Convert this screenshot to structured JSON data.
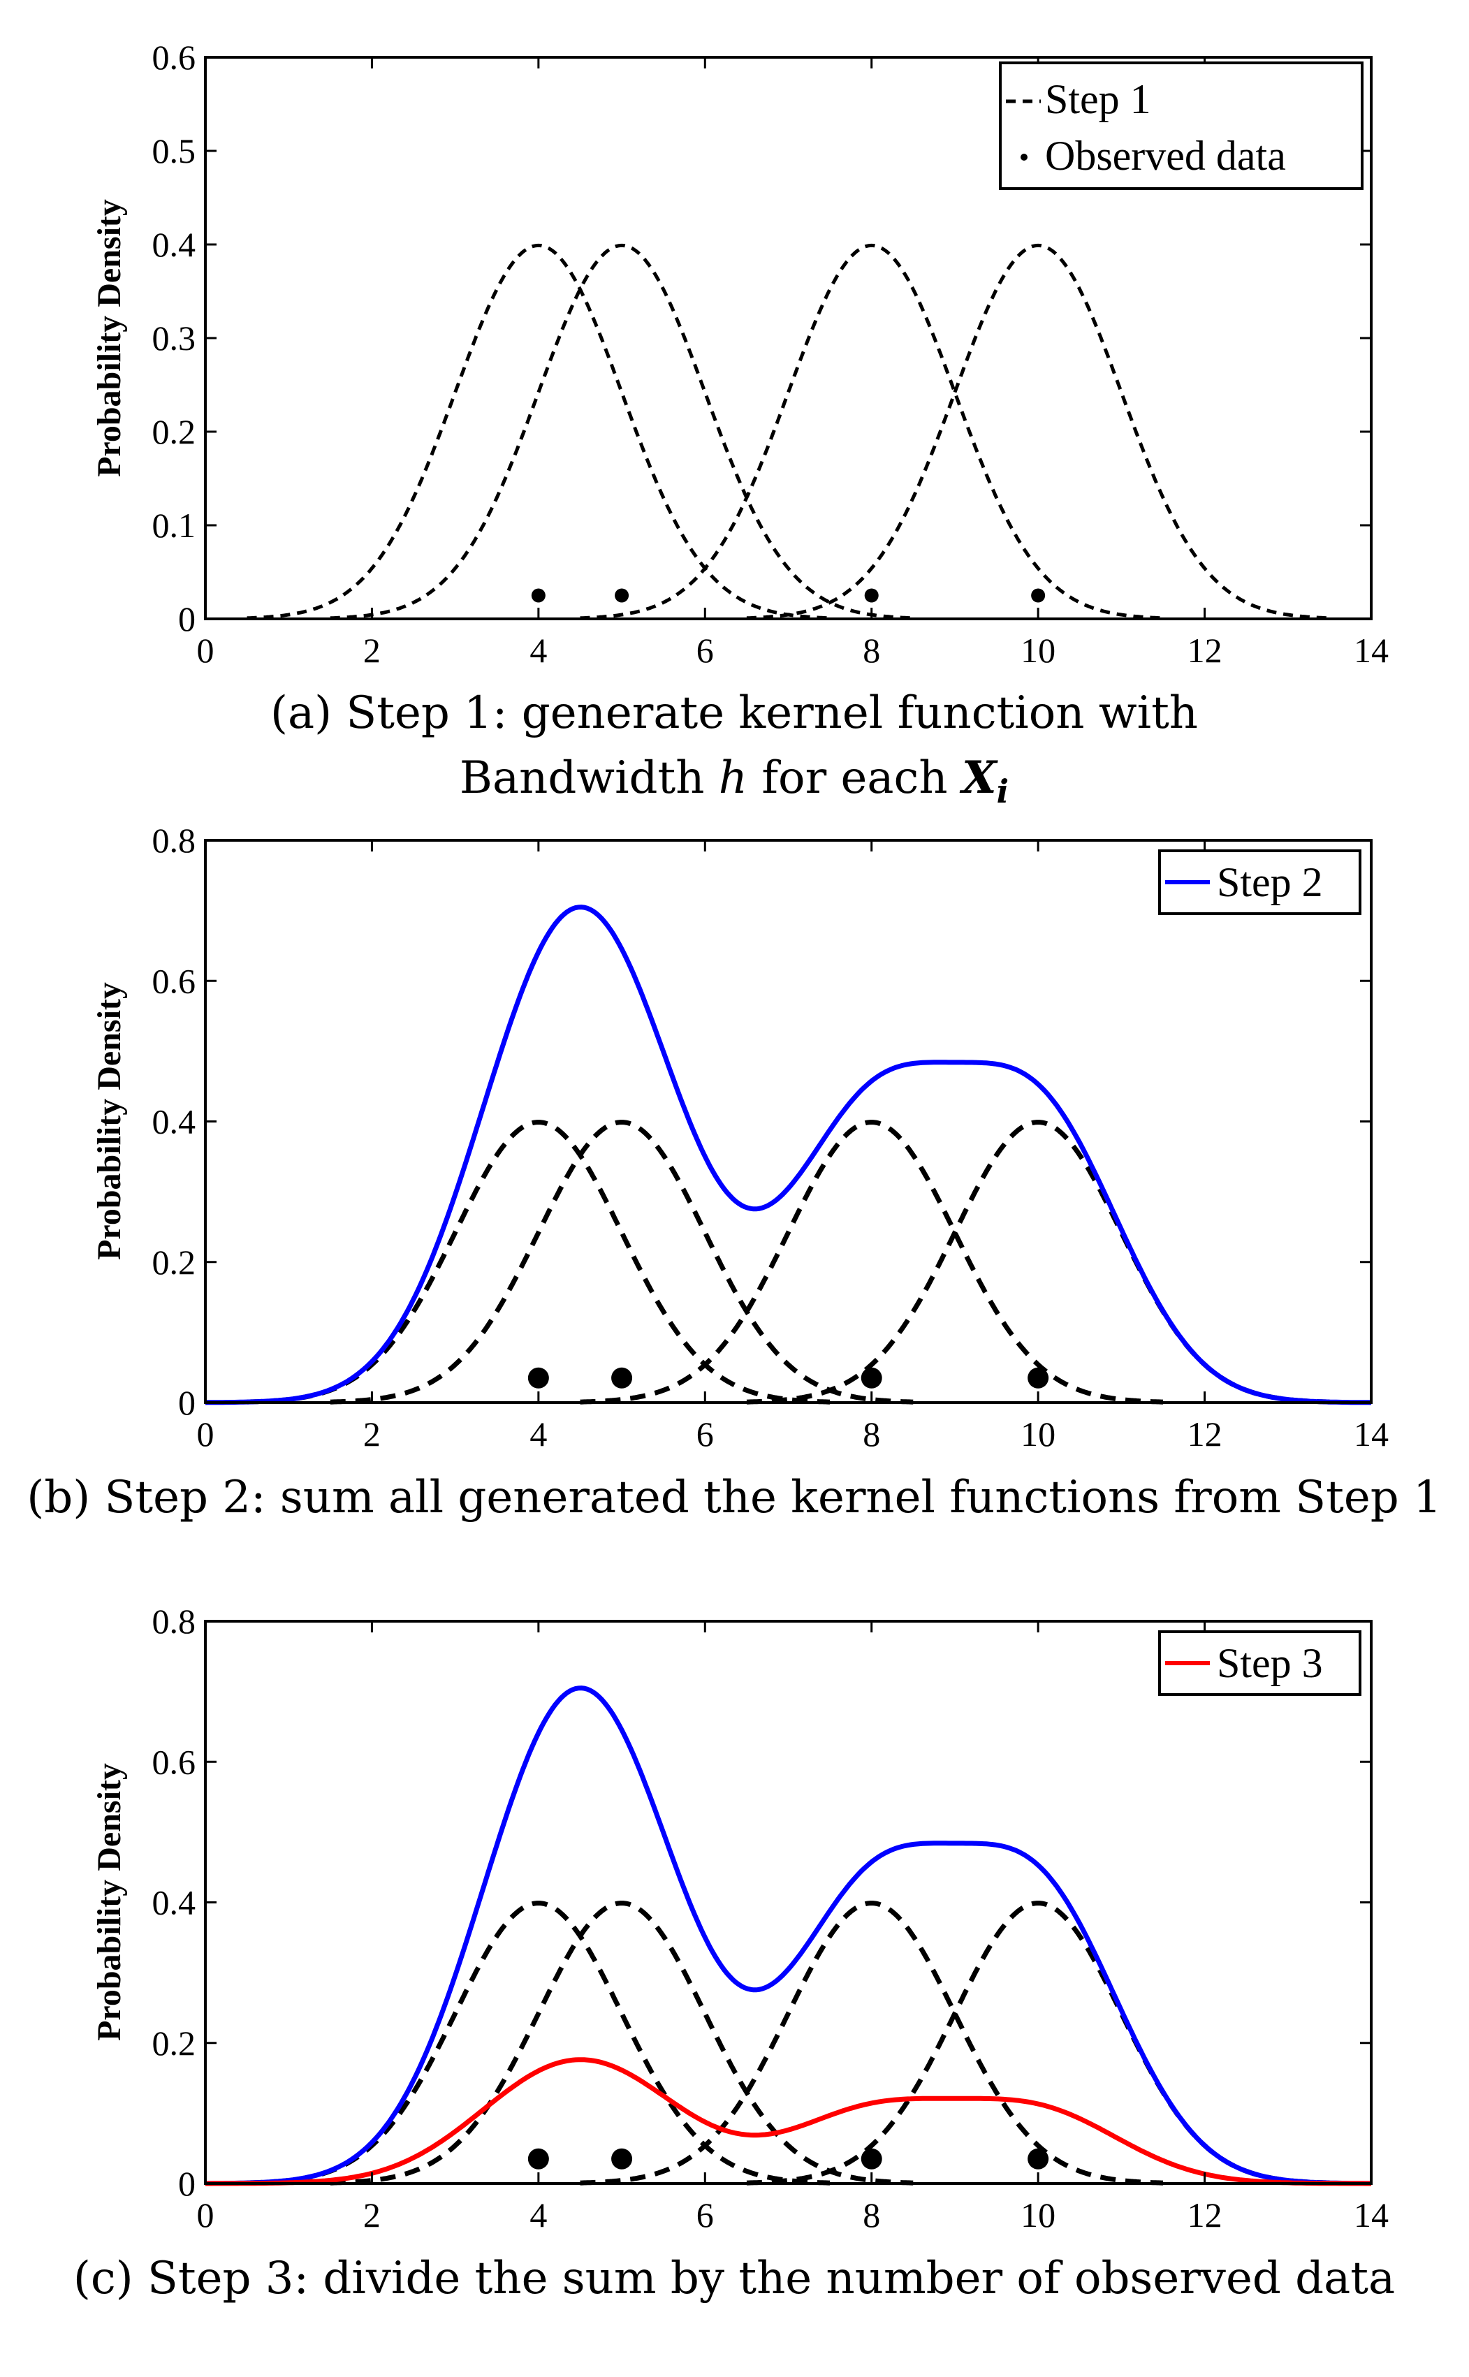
{
  "chart_data": [
    {
      "id": "a",
      "type": "line",
      "ylabel": "Probability Density",
      "xlim": [
        0,
        14
      ],
      "ylim": [
        0,
        0.6
      ],
      "xticks": [
        0,
        2,
        4,
        6,
        8,
        10,
        12,
        14
      ],
      "yticks": [
        0,
        0.1,
        0.2,
        0.3,
        0.4,
        0.5,
        0.6
      ],
      "observed_x": [
        4,
        5,
        8,
        10
      ],
      "observed_y": 0.025,
      "bandwidth": 1,
      "series": [
        {
          "name": "Step 1",
          "kind": "kernels",
          "color": "#000000",
          "style": "dashed"
        }
      ],
      "legend": {
        "position": "top-right",
        "entries": [
          "Step 1",
          "Observed data"
        ]
      },
      "caption": {
        "line1": "(a) Step 1: generate kernel function with",
        "line2_prefix": "Bandwidth ",
        "line2_h": "h",
        "line2_middle": " for each ",
        "line2_X": "X",
        "line2_i": "i"
      }
    },
    {
      "id": "b",
      "type": "line",
      "ylabel": "Probability Density",
      "xlim": [
        0,
        14
      ],
      "ylim": [
        0,
        0.8
      ],
      "xticks": [
        0,
        2,
        4,
        6,
        8,
        10,
        12,
        14
      ],
      "yticks": [
        0,
        0.2,
        0.4,
        0.6,
        0.8
      ],
      "observed_x": [
        4,
        5,
        8,
        10
      ],
      "observed_y": 0.035,
      "bandwidth": 1,
      "series": [
        {
          "name": "kernels",
          "kind": "kernels",
          "color": "#000000",
          "style": "dashed"
        },
        {
          "name": "Step 2",
          "kind": "sum",
          "color": "#0000ff",
          "style": "solid"
        }
      ],
      "legend": {
        "position": "top-right",
        "entries": [
          "Step 2"
        ]
      },
      "caption": {
        "line1": "(b) Step 2: sum all generated the kernel functions from Step 1"
      }
    },
    {
      "id": "c",
      "type": "line",
      "ylabel": "Probability Density",
      "xlim": [
        0,
        14
      ],
      "ylim": [
        0,
        0.8
      ],
      "xticks": [
        0,
        2,
        4,
        6,
        8,
        10,
        12,
        14
      ],
      "yticks": [
        0,
        0.2,
        0.4,
        0.6,
        0.8
      ],
      "observed_x": [
        4,
        5,
        8,
        10
      ],
      "observed_y": 0.035,
      "bandwidth": 1,
      "series": [
        {
          "name": "kernels",
          "kind": "kernels",
          "color": "#000000",
          "style": "dashed"
        },
        {
          "name": "sum",
          "kind": "sum",
          "color": "#0000ff",
          "style": "solid"
        },
        {
          "name": "Step 3",
          "kind": "mean",
          "color": "#ff0000",
          "style": "solid"
        }
      ],
      "legend": {
        "position": "top-right",
        "entries": [
          "Step 3"
        ]
      },
      "caption": {
        "line1": "(c) Step 3: divide the sum by the number of observed data"
      }
    }
  ]
}
